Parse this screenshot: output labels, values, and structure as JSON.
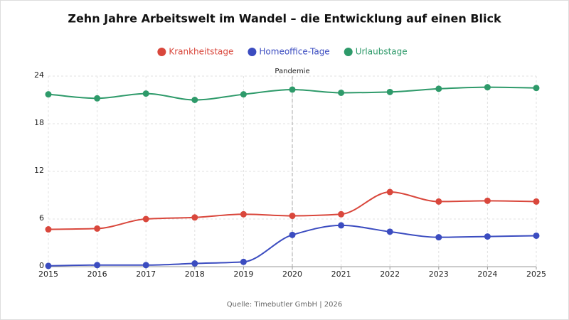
{
  "chart_data": {
    "type": "line",
    "title": "Zehn Jahre Arbeitswelt im Wandel – die Entwicklung auf einen Blick",
    "x": [
      2015,
      2016,
      2017,
      2018,
      2019,
      2020,
      2021,
      2022,
      2023,
      2024,
      2025
    ],
    "xlim": [
      2015,
      2025
    ],
    "xticks": [
      2015,
      2016,
      2017,
      2018,
      2019,
      2020,
      2021,
      2022,
      2023,
      2024,
      2025
    ],
    "ylim": [
      0,
      24
    ],
    "yticks": [
      0,
      6,
      12,
      18,
      24
    ],
    "grid": true,
    "legend": "top",
    "series": [
      {
        "name": "Krankheitstage",
        "color": "#d9473c",
        "values": [
          4.7,
          4.8,
          6.0,
          6.2,
          6.6,
          6.4,
          6.6,
          9.4,
          8.2,
          8.3,
          8.2
        ]
      },
      {
        "name": "Homeoffice-Tage",
        "color": "#3b4cc0",
        "values": [
          0.1,
          0.2,
          0.2,
          0.4,
          0.6,
          4.0,
          5.2,
          4.4,
          3.7,
          3.8,
          3.9
        ]
      },
      {
        "name": "Urlaubstage",
        "color": "#2e9a6a",
        "values": [
          21.7,
          21.2,
          21.8,
          21.0,
          21.7,
          22.3,
          21.9,
          22.0,
          22.4,
          22.6,
          22.5
        ]
      }
    ],
    "annotations": [
      {
        "x": 2020,
        "label": "Pandemie"
      }
    ],
    "source": "Quelle: Timebutler GmbH | 2026"
  }
}
